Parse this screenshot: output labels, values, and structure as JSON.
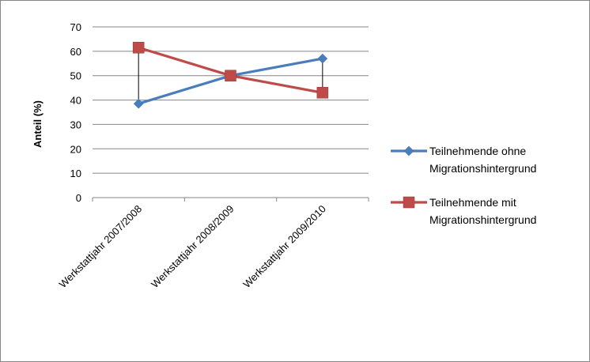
{
  "chart_data": {
    "type": "line",
    "categories": [
      "Werkstattjahr 2007/2008",
      "Werkstattjahr 2008/2009",
      "Werkstattjahr 2009/2010"
    ],
    "series": [
      {
        "name_lines": [
          "Teilnehmende ohne",
          "Migrationshintergrund"
        ],
        "color": "#4a7ebb",
        "marker": "diamond",
        "values": [
          38.5,
          50,
          57
        ]
      },
      {
        "name_lines": [
          "Teilnehmende mit",
          "Migrationshintergrund"
        ],
        "color": "#be4b48",
        "marker": "square",
        "values": [
          61.5,
          50,
          43
        ]
      }
    ],
    "ylabel": "Anteil (%)",
    "ylim": [
      0,
      70
    ],
    "yticks": [
      0,
      10,
      20,
      30,
      40,
      50,
      60,
      70
    ],
    "grid": true,
    "hi_lo_lines": true,
    "legend_position": "right"
  }
}
